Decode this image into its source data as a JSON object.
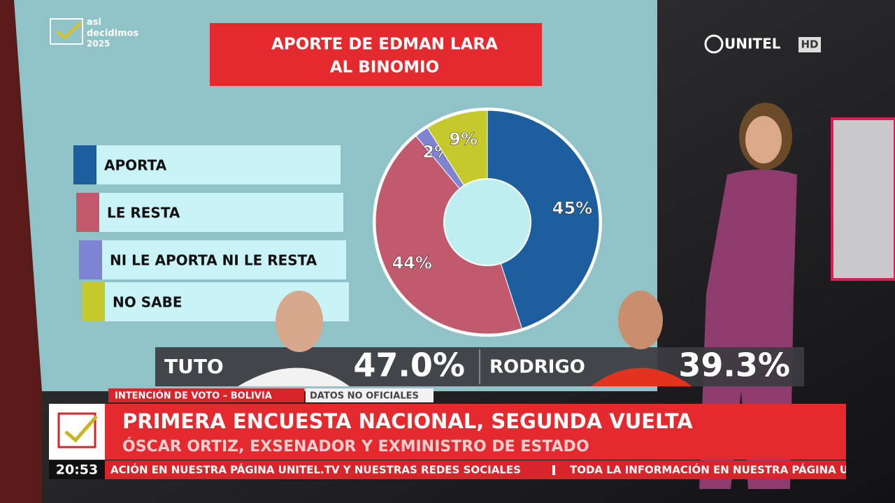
{
  "chart_data": {
    "type": "donut",
    "title": [
      "APORTE DE EDMAN LARA",
      "AL BINOMIO"
    ],
    "categories": [
      "APORTA",
      "LE RESTA",
      "NI LE APORTA NI LE RESTA",
      "NO SABE"
    ],
    "values": [
      45,
      44,
      2,
      9
    ],
    "value_labels": [
      "45%",
      "44%",
      "2%",
      "9%"
    ],
    "colors": [
      "#1d5f9e",
      "#c05a6c",
      "#7f84d2",
      "#c5c92c"
    ]
  },
  "logo": {
    "line1": "asi",
    "line2": "decidimos",
    "line3": "2025"
  },
  "channel": {
    "name": "UNITEL",
    "badge": "HD"
  },
  "results": [
    {
      "name": "TUTO",
      "share": "47.0%"
    },
    {
      "name": "RODRIGO",
      "share": "39.3%"
    }
  ],
  "lower_third": {
    "tag": "INTENCIÓN DE VOTO – BOLIVIA",
    "note": "DATOS NO OFICIALES",
    "headline": "PRIMERA ENCUESTA NACIONAL, SEGUNDA VUELTA",
    "subheadline": "ÓSCAR ORTIZ, EXSENADOR Y EXMINISTRO DE ESTADO"
  },
  "clock": "20:53",
  "ticker": [
    "ACIÓN EN NUESTRA PÁGINA UNITEL.TV Y NUESTRAS REDES SOCIALES",
    "TODA LA INFORMACIÓN EN NUESTRA PÁGINA UNI"
  ]
}
